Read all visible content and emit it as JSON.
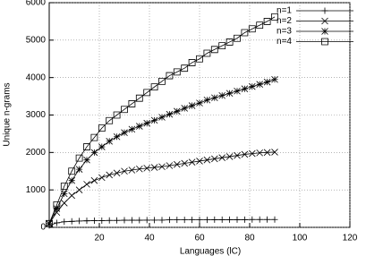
{
  "chart_data": {
    "type": "line",
    "x_label": "Languages (lC)",
    "y_label": "Unique n-grams",
    "x": [
      0,
      3,
      6,
      9,
      12,
      15,
      18,
      21,
      24,
      27,
      30,
      33,
      36,
      39,
      42,
      45,
      48,
      51,
      54,
      57,
      60,
      63,
      66,
      69,
      72,
      75,
      78,
      81,
      84,
      87,
      90
    ],
    "series": [
      {
        "name": "n=1",
        "color": "#000000",
        "point": "plus",
        "values": [
          50,
          120,
          150,
          160,
          170,
          175,
          180,
          180,
          185,
          185,
          190,
          190,
          190,
          195,
          195,
          195,
          200,
          200,
          200,
          200,
          200,
          200,
          205,
          205,
          205,
          205,
          205,
          210,
          210,
          210,
          210
        ]
      },
      {
        "name": "n=2",
        "color": "#000000",
        "point": "cross",
        "values": [
          100,
          400,
          650,
          850,
          1000,
          1150,
          1250,
          1330,
          1400,
          1450,
          1500,
          1530,
          1560,
          1580,
          1600,
          1620,
          1650,
          1680,
          1710,
          1740,
          1770,
          1800,
          1830,
          1860,
          1890,
          1920,
          1950,
          1970,
          1990,
          2000,
          2010
        ]
      },
      {
        "name": "n=3",
        "color": "#000000",
        "point": "star",
        "values": [
          100,
          500,
          900,
          1250,
          1550,
          1800,
          2000,
          2150,
          2300,
          2420,
          2530,
          2620,
          2700,
          2780,
          2860,
          2940,
          3020,
          3100,
          3180,
          3250,
          3320,
          3400,
          3460,
          3520,
          3580,
          3640,
          3700,
          3760,
          3820,
          3880,
          3950
        ]
      },
      {
        "name": "n=4",
        "color": "#000000",
        "point": "square",
        "values": [
          100,
          600,
          1100,
          1500,
          1850,
          2150,
          2400,
          2650,
          2850,
          3000,
          3150,
          3300,
          3450,
          3600,
          3750,
          3900,
          4050,
          4150,
          4250,
          4400,
          4500,
          4650,
          4750,
          4850,
          4950,
          5050,
          5200,
          5300,
          5400,
          5500,
          5620
        ]
      }
    ],
    "xlim": [
      0,
      120
    ],
    "xticks": [
      20,
      40,
      60,
      80,
      100,
      120
    ],
    "ylim": [
      0,
      6000
    ],
    "yticks": [
      0,
      1000,
      2000,
      3000,
      4000,
      5000,
      6000
    ],
    "grid": true,
    "legend": "top-right"
  }
}
